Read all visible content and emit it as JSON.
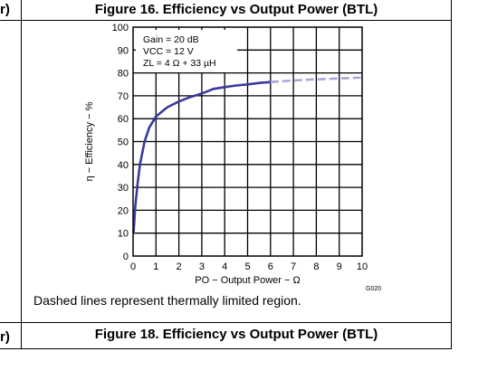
{
  "stubs": {
    "top": "r)",
    "bottom": "r)"
  },
  "figure_title": "Figure 16. Efficiency vs Output Power (BTL)",
  "next_figure_title": "Figure 18. Efficiency vs Output Power (BTL)",
  "note": "Dashed lines represent thermally limited region.",
  "figure_code": "G020",
  "chart_data": {
    "type": "line",
    "title": "Figure 16. Efficiency vs Output Power (BTL)",
    "xlabel": "PO − Output Power − Ω",
    "ylabel": "η − Efficiency − %",
    "xlim": [
      0,
      10
    ],
    "ylim": [
      0,
      100
    ],
    "x_ticks": [
      "0",
      "1",
      "2",
      "3",
      "4",
      "5",
      "6",
      "7",
      "8",
      "9",
      "10"
    ],
    "y_ticks": [
      "0",
      "10",
      "20",
      "30",
      "40",
      "50",
      "60",
      "70",
      "80",
      "90",
      "100"
    ],
    "grid": true,
    "annotations": [
      "Gain = 20 dB",
      "VCC = 12 V",
      "ZL = 4 Ω + 33 µH"
    ],
    "series": [
      {
        "style": "solid",
        "color": "#3a3a9a",
        "x": [
          0.02,
          0.1,
          0.2,
          0.3,
          0.5,
          0.7,
          1.0,
          1.5,
          2.0,
          2.5,
          3.0,
          3.5,
          4.0,
          4.5,
          5.0,
          5.5,
          6.0
        ],
        "y": [
          10,
          22,
          32,
          40,
          50,
          56,
          61,
          65,
          67.5,
          69.5,
          71,
          73,
          73.8,
          74.5,
          75,
          75.6,
          76
        ]
      },
      {
        "style": "dashed",
        "color": "#a8a8d8",
        "x": [
          6.0,
          7.0,
          8.0,
          9.0,
          10.0
        ],
        "y": [
          76,
          76.7,
          77.2,
          77.6,
          78
        ]
      }
    ]
  }
}
